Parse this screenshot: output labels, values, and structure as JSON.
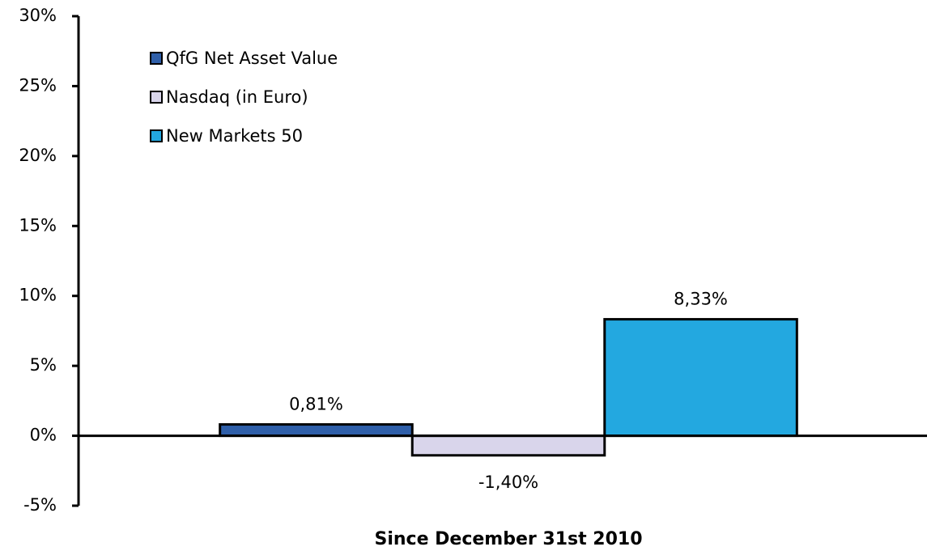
{
  "chart_data": {
    "type": "bar",
    "categories": [
      "Since December 31st 2010"
    ],
    "series": [
      {
        "name": "QfG Net Asset Value",
        "color": "#2f5fa9",
        "values": [
          0.81
        ],
        "value_labels": [
          "0,81%"
        ]
      },
      {
        "name": "Nasdaq (in Euro)",
        "color": "#d9d5eb",
        "values": [
          -1.4
        ],
        "value_labels": [
          "-1,40%"
        ]
      },
      {
        "name": "New Markets 50",
        "color": "#23a8e0",
        "values": [
          8.33
        ],
        "value_labels": [
          "8,33%"
        ]
      }
    ],
    "ylim": [
      -5,
      30
    ],
    "yticks": [
      {
        "value": -5,
        "label": "-5%"
      },
      {
        "value": 0,
        "label": "0%"
      },
      {
        "value": 5,
        "label": "5%"
      },
      {
        "value": 10,
        "label": "10%"
      },
      {
        "value": 15,
        "label": "15%"
      },
      {
        "value": 20,
        "label": "20%"
      },
      {
        "value": 25,
        "label": "25%"
      },
      {
        "value": 30,
        "label": "30%"
      }
    ],
    "grid": false,
    "legend": "upper left"
  }
}
